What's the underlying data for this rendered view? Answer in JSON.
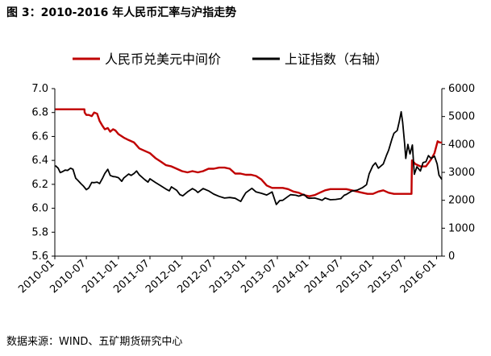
{
  "header": {
    "title": "图 3：2010-2016 年人民币汇率与沪指走势"
  },
  "footer": {
    "source": "数据来源：WIND、五矿期货研究中心"
  },
  "chart_data": {
    "type": "line",
    "legend_position": "top",
    "grid": false,
    "left_axis": {
      "ylim": [
        5.6,
        7.0
      ],
      "ticks": [
        "7.0",
        "6.8",
        "6.6",
        "6.4",
        "6.2",
        "6.0",
        "5.8",
        "5.6"
      ]
    },
    "right_axis": {
      "ylim": [
        0,
        6000
      ],
      "ticks": [
        "6000",
        "5000",
        "4000",
        "3000",
        "2000",
        "1000",
        "0"
      ]
    },
    "x_ticks": [
      "2010-01",
      "2010-07",
      "2011-01",
      "2011-07",
      "2012-01",
      "2012-07",
      "2013-01",
      "2013-07",
      "2014-01",
      "2014-07",
      "2015-01",
      "2015-07",
      "2016-01"
    ],
    "series": [
      {
        "name": "人民币兑美元中间价",
        "axis": "left",
        "color": "#c00000",
        "points": [
          [
            "2010-01-04",
            6.827
          ],
          [
            "2010-02-01",
            6.827
          ],
          [
            "2010-03-01",
            6.827
          ],
          [
            "2010-04-01",
            6.827
          ],
          [
            "2010-05-01",
            6.827
          ],
          [
            "2010-06-01",
            6.827
          ],
          [
            "2010-06-20",
            6.827
          ],
          [
            "2010-06-21",
            6.8
          ],
          [
            "2010-07-01",
            6.78
          ],
          [
            "2010-07-15",
            6.78
          ],
          [
            "2010-08-01",
            6.77
          ],
          [
            "2010-08-15",
            6.8
          ],
          [
            "2010-09-01",
            6.79
          ],
          [
            "2010-09-15",
            6.73
          ],
          [
            "2010-10-01",
            6.69
          ],
          [
            "2010-10-15",
            6.66
          ],
          [
            "2010-11-01",
            6.67
          ],
          [
            "2010-11-15",
            6.64
          ],
          [
            "2010-12-01",
            6.66
          ],
          [
            "2010-12-15",
            6.65
          ],
          [
            "2011-01-01",
            6.62
          ],
          [
            "2011-02-01",
            6.59
          ],
          [
            "2011-03-01",
            6.57
          ],
          [
            "2011-04-01",
            6.55
          ],
          [
            "2011-05-01",
            6.5
          ],
          [
            "2011-06-01",
            6.48
          ],
          [
            "2011-07-01",
            6.46
          ],
          [
            "2011-08-01",
            6.42
          ],
          [
            "2011-09-01",
            6.39
          ],
          [
            "2011-10-01",
            6.36
          ],
          [
            "2011-11-01",
            6.35
          ],
          [
            "2011-12-01",
            6.33
          ],
          [
            "2012-01-01",
            6.31
          ],
          [
            "2012-02-01",
            6.3
          ],
          [
            "2012-03-01",
            6.31
          ],
          [
            "2012-04-01",
            6.3
          ],
          [
            "2012-05-01",
            6.31
          ],
          [
            "2012-06-01",
            6.33
          ],
          [
            "2012-07-01",
            6.33
          ],
          [
            "2012-08-01",
            6.34
          ],
          [
            "2012-09-01",
            6.34
          ],
          [
            "2012-10-01",
            6.33
          ],
          [
            "2012-11-01",
            6.29
          ],
          [
            "2012-12-01",
            6.29
          ],
          [
            "2013-01-01",
            6.28
          ],
          [
            "2013-02-01",
            6.28
          ],
          [
            "2013-03-01",
            6.27
          ],
          [
            "2013-04-01",
            6.24
          ],
          [
            "2013-05-01",
            6.19
          ],
          [
            "2013-06-01",
            6.17
          ],
          [
            "2013-07-01",
            6.17
          ],
          [
            "2013-08-01",
            6.17
          ],
          [
            "2013-09-01",
            6.16
          ],
          [
            "2013-10-01",
            6.14
          ],
          [
            "2013-11-01",
            6.13
          ],
          [
            "2013-12-01",
            6.11
          ],
          [
            "2014-01-01",
            6.1
          ],
          [
            "2014-02-01",
            6.11
          ],
          [
            "2014-03-01",
            6.13
          ],
          [
            "2014-04-01",
            6.15
          ],
          [
            "2014-05-01",
            6.16
          ],
          [
            "2014-06-01",
            6.16
          ],
          [
            "2014-07-01",
            6.16
          ],
          [
            "2014-08-01",
            6.16
          ],
          [
            "2014-09-01",
            6.15
          ],
          [
            "2014-10-01",
            6.14
          ],
          [
            "2014-11-01",
            6.13
          ],
          [
            "2014-12-01",
            6.12
          ],
          [
            "2015-01-01",
            6.12
          ],
          [
            "2015-02-01",
            6.14
          ],
          [
            "2015-03-01",
            6.15
          ],
          [
            "2015-04-01",
            6.13
          ],
          [
            "2015-05-01",
            6.12
          ],
          [
            "2015-06-01",
            6.12
          ],
          [
            "2015-07-01",
            6.12
          ],
          [
            "2015-08-10",
            6.12
          ],
          [
            "2015-08-11",
            6.23
          ],
          [
            "2015-08-13",
            6.4
          ],
          [
            "2015-09-01",
            6.37
          ],
          [
            "2015-10-01",
            6.35
          ],
          [
            "2015-11-01",
            6.35
          ],
          [
            "2015-12-01",
            6.41
          ],
          [
            "2015-12-20",
            6.46
          ],
          [
            "2016-01-07",
            6.56
          ],
          [
            "2016-01-20",
            6.55
          ],
          [
            "2016-01-31",
            6.55
          ]
        ]
      },
      {
        "name": "上证指数（右轴）",
        "axis": "right",
        "color": "#000000",
        "points": [
          [
            "2010-01-04",
            3243
          ],
          [
            "2010-01-20",
            3150
          ],
          [
            "2010-02-01",
            2990
          ],
          [
            "2010-02-15",
            3030
          ],
          [
            "2010-03-01",
            3080
          ],
          [
            "2010-03-15",
            3070
          ],
          [
            "2010-04-01",
            3150
          ],
          [
            "2010-04-15",
            3110
          ],
          [
            "2010-05-01",
            2790
          ],
          [
            "2010-05-15",
            2700
          ],
          [
            "2010-06-01",
            2590
          ],
          [
            "2010-06-15",
            2500
          ],
          [
            "2010-07-01",
            2380
          ],
          [
            "2010-07-15",
            2440
          ],
          [
            "2010-08-01",
            2640
          ],
          [
            "2010-08-15",
            2630
          ],
          [
            "2010-09-01",
            2650
          ],
          [
            "2010-09-15",
            2600
          ],
          [
            "2010-10-01",
            2780
          ],
          [
            "2010-10-15",
            2960
          ],
          [
            "2010-11-01",
            3110
          ],
          [
            "2010-11-15",
            2890
          ],
          [
            "2010-12-01",
            2850
          ],
          [
            "2010-12-15",
            2840
          ],
          [
            "2011-01-01",
            2810
          ],
          [
            "2011-01-20",
            2680
          ],
          [
            "2011-02-01",
            2800
          ],
          [
            "2011-03-01",
            2940
          ],
          [
            "2011-03-15",
            2890
          ],
          [
            "2011-04-01",
            2960
          ],
          [
            "2011-04-15",
            3050
          ],
          [
            "2011-05-01",
            2910
          ],
          [
            "2011-06-01",
            2740
          ],
          [
            "2011-06-20",
            2650
          ],
          [
            "2011-07-01",
            2770
          ],
          [
            "2011-08-01",
            2640
          ],
          [
            "2011-09-01",
            2520
          ],
          [
            "2011-10-01",
            2400
          ],
          [
            "2011-10-20",
            2340
          ],
          [
            "2011-11-01",
            2480
          ],
          [
            "2011-12-01",
            2360
          ],
          [
            "2011-12-20",
            2200
          ],
          [
            "2012-01-06",
            2160
          ],
          [
            "2012-02-01",
            2300
          ],
          [
            "2012-03-01",
            2420
          ],
          [
            "2012-03-20",
            2350
          ],
          [
            "2012-04-01",
            2280
          ],
          [
            "2012-05-01",
            2420
          ],
          [
            "2012-06-01",
            2340
          ],
          [
            "2012-07-01",
            2220
          ],
          [
            "2012-08-01",
            2140
          ],
          [
            "2012-09-01",
            2080
          ],
          [
            "2012-10-01",
            2100
          ],
          [
            "2012-11-01",
            2070
          ],
          [
            "2012-12-03",
            1960
          ],
          [
            "2012-12-20",
            2150
          ],
          [
            "2013-01-01",
            2270
          ],
          [
            "2013-02-05",
            2430
          ],
          [
            "2013-03-01",
            2300
          ],
          [
            "2013-04-01",
            2250
          ],
          [
            "2013-05-01",
            2190
          ],
          [
            "2013-06-01",
            2300
          ],
          [
            "2013-06-25",
            1850
          ],
          [
            "2013-07-15",
            1990
          ],
          [
            "2013-08-01",
            2000
          ],
          [
            "2013-09-01",
            2140
          ],
          [
            "2013-09-15",
            2200
          ],
          [
            "2013-10-15",
            2180
          ],
          [
            "2013-11-01",
            2150
          ],
          [
            "2013-12-01",
            2210
          ],
          [
            "2013-12-20",
            2090
          ],
          [
            "2014-01-01",
            2070
          ],
          [
            "2014-02-01",
            2080
          ],
          [
            "2014-03-01",
            2030
          ],
          [
            "2014-03-15",
            2000
          ],
          [
            "2014-04-01",
            2080
          ],
          [
            "2014-05-01",
            2020
          ],
          [
            "2014-06-01",
            2030
          ],
          [
            "2014-07-01",
            2060
          ],
          [
            "2014-07-20",
            2180
          ],
          [
            "2014-08-01",
            2210
          ],
          [
            "2014-09-01",
            2330
          ],
          [
            "2014-10-01",
            2360
          ],
          [
            "2014-11-01",
            2450
          ],
          [
            "2014-11-25",
            2560
          ],
          [
            "2014-12-10",
            2950
          ],
          [
            "2014-12-31",
            3235
          ],
          [
            "2015-01-15",
            3340
          ],
          [
            "2015-02-01",
            3150
          ],
          [
            "2015-03-01",
            3300
          ],
          [
            "2015-03-20",
            3620
          ],
          [
            "2015-04-01",
            3800
          ],
          [
            "2015-04-20",
            4200
          ],
          [
            "2015-05-01",
            4400
          ],
          [
            "2015-05-20",
            4500
          ],
          [
            "2015-06-01",
            4830
          ],
          [
            "2015-06-12",
            5170
          ],
          [
            "2015-06-20",
            4800
          ],
          [
            "2015-07-01",
            4050
          ],
          [
            "2015-07-08",
            3500
          ],
          [
            "2015-07-20",
            4000
          ],
          [
            "2015-08-01",
            3660
          ],
          [
            "2015-08-15",
            3980
          ],
          [
            "2015-08-26",
            2930
          ],
          [
            "2015-09-10",
            3200
          ],
          [
            "2015-09-30",
            3050
          ],
          [
            "2015-10-15",
            3350
          ],
          [
            "2015-11-01",
            3380
          ],
          [
            "2015-11-15",
            3600
          ],
          [
            "2015-12-01",
            3500
          ],
          [
            "2015-12-20",
            3580
          ],
          [
            "2016-01-04",
            3300
          ],
          [
            "2016-01-15",
            2900
          ],
          [
            "2016-01-31",
            2750
          ]
        ]
      }
    ]
  }
}
